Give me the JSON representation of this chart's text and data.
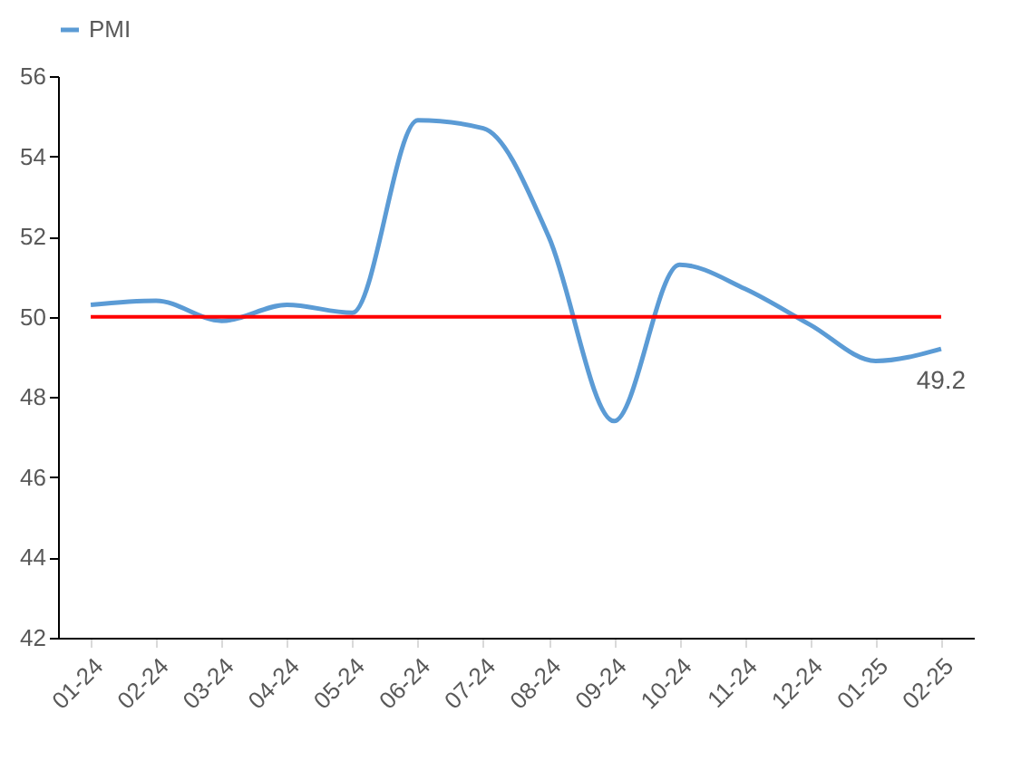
{
  "chart_data": {
    "type": "line",
    "categories": [
      "01-24",
      "02-24",
      "03-24",
      "04-24",
      "05-24",
      "06-24",
      "07-24",
      "08-24",
      "09-24",
      "10-24",
      "11-24",
      "12-24",
      "01-25",
      "02-25"
    ],
    "series": [
      {
        "name": "PMI",
        "color": "#5b9bd5",
        "values": [
          50.3,
          50.4,
          49.9,
          50.3,
          50.1,
          54.9,
          54.7,
          52.0,
          47.4,
          51.3,
          50.7,
          49.8,
          48.9,
          49.2
        ],
        "value_labels": [
          null,
          null,
          null,
          null,
          null,
          null,
          null,
          null,
          null,
          null,
          null,
          null,
          null,
          "49.2"
        ]
      }
    ],
    "ylim": [
      42,
      56
    ],
    "yticks": [
      42,
      44,
      46,
      48,
      50,
      52,
      54,
      56
    ],
    "grid": false,
    "legend": "top",
    "ref_lines": [
      {
        "axis": "y",
        "value": 50,
        "color": "#ff0000"
      }
    ]
  }
}
